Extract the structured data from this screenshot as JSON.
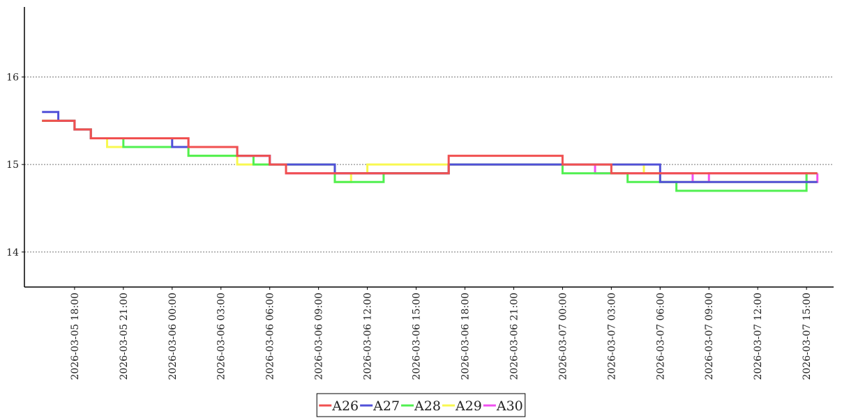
{
  "chart_data": {
    "type": "step-line",
    "x": [
      "2026-03-05 16:00",
      "2026-03-05 17:00",
      "2026-03-05 18:00",
      "2026-03-05 19:00",
      "2026-03-05 20:00",
      "2026-03-05 21:00",
      "2026-03-05 22:00",
      "2026-03-05 23:00",
      "2026-03-06 00:00",
      "2026-03-06 01:00",
      "2026-03-06 02:00",
      "2026-03-06 03:00",
      "2026-03-06 04:00",
      "2026-03-06 05:00",
      "2026-03-06 06:00",
      "2026-03-06 07:00",
      "2026-03-06 08:00",
      "2026-03-06 09:00",
      "2026-03-06 10:00",
      "2026-03-06 11:00",
      "2026-03-06 12:00",
      "2026-03-06 13:00",
      "2026-03-06 14:00",
      "2026-03-06 15:00",
      "2026-03-06 16:00",
      "2026-03-06 17:00",
      "2026-03-06 18:00",
      "2026-03-06 19:00",
      "2026-03-06 20:00",
      "2026-03-06 21:00",
      "2026-03-06 22:00",
      "2026-03-06 23:00",
      "2026-03-07 00:00",
      "2026-03-07 01:00",
      "2026-03-07 02:00",
      "2026-03-07 03:00",
      "2026-03-07 04:00",
      "2026-03-07 05:00",
      "2026-03-07 06:00",
      "2026-03-07 07:00",
      "2026-03-07 08:00",
      "2026-03-07 09:00",
      "2026-03-07 10:00",
      "2026-03-07 11:00",
      "2026-03-07 12:00",
      "2026-03-07 13:00",
      "2026-03-07 14:00",
      "2026-03-07 15:00",
      "2026-03-07 15:40"
    ],
    "series": [
      {
        "name": "A26",
        "color": "#f05050",
        "values": [
          15.5,
          15.5,
          15.4,
          15.3,
          15.3,
          15.3,
          15.3,
          15.3,
          15.3,
          15.2,
          15.2,
          15.2,
          15.1,
          15.1,
          15.0,
          14.9,
          14.9,
          14.9,
          14.9,
          14.9,
          14.9,
          14.9,
          14.9,
          14.9,
          14.9,
          15.1,
          15.1,
          15.1,
          15.1,
          15.1,
          15.1,
          15.1,
          15.0,
          15.0,
          15.0,
          14.9,
          14.9,
          14.9,
          14.9,
          14.9,
          14.9,
          14.9,
          14.9,
          14.9,
          14.9,
          14.9,
          14.9,
          14.9,
          14.9
        ]
      },
      {
        "name": "A27",
        "color": "#5050d8",
        "values": [
          15.6,
          15.5,
          15.4,
          15.3,
          15.3,
          15.3,
          15.3,
          15.3,
          15.2,
          15.2,
          15.2,
          15.2,
          15.1,
          15.1,
          15.0,
          15.0,
          15.0,
          15.0,
          14.9,
          14.9,
          14.9,
          14.9,
          14.9,
          14.9,
          14.9,
          15.0,
          15.0,
          15.0,
          15.0,
          15.0,
          15.0,
          15.0,
          15.0,
          15.0,
          15.0,
          15.0,
          15.0,
          15.0,
          14.8,
          14.8,
          14.8,
          14.8,
          14.8,
          14.8,
          14.8,
          14.8,
          14.8,
          14.8,
          14.8
        ]
      },
      {
        "name": "A28",
        "color": "#50f050",
        "values": [
          15.5,
          15.5,
          15.4,
          15.3,
          15.3,
          15.2,
          15.2,
          15.2,
          15.2,
          15.1,
          15.1,
          15.1,
          15.1,
          15.0,
          15.0,
          15.0,
          15.0,
          15.0,
          14.8,
          14.8,
          14.8,
          14.9,
          14.9,
          14.9,
          14.9,
          15.0,
          15.0,
          15.0,
          15.0,
          15.0,
          15.0,
          15.0,
          14.9,
          14.9,
          14.9,
          14.9,
          14.8,
          14.8,
          14.8,
          14.7,
          14.7,
          14.7,
          14.7,
          14.7,
          14.7,
          14.7,
          14.7,
          14.9,
          14.9
        ]
      },
      {
        "name": "A29",
        "color": "#f8f850",
        "values": [
          15.5,
          15.5,
          15.4,
          15.3,
          15.2,
          15.2,
          15.2,
          15.2,
          15.2,
          15.1,
          15.1,
          15.1,
          15.0,
          15.0,
          15.0,
          15.0,
          15.0,
          15.0,
          14.8,
          14.9,
          15.0,
          15.0,
          15.0,
          15.0,
          15.0,
          15.0,
          15.0,
          15.0,
          15.0,
          15.0,
          15.0,
          15.0,
          15.0,
          15.0,
          15.0,
          15.0,
          15.0,
          14.9,
          14.8,
          14.8,
          14.8,
          14.8,
          14.8,
          14.8,
          14.8,
          14.8,
          14.8,
          14.8,
          14.8
        ]
      },
      {
        "name": "A30",
        "color": "#f050f0",
        "values": [
          15.5,
          15.5,
          15.4,
          15.3,
          15.3,
          15.3,
          15.3,
          15.3,
          15.3,
          15.2,
          15.2,
          15.2,
          15.1,
          15.1,
          15.0,
          14.9,
          14.9,
          14.9,
          14.9,
          14.9,
          14.9,
          14.9,
          14.9,
          14.9,
          14.9,
          15.0,
          15.0,
          15.0,
          15.0,
          15.0,
          15.0,
          15.0,
          15.0,
          15.0,
          14.9,
          14.9,
          14.9,
          14.9,
          14.9,
          14.9,
          14.8,
          14.9,
          14.9,
          14.9,
          14.9,
          14.9,
          14.9,
          14.8,
          14.9
        ]
      }
    ],
    "xlim": [
      "2026-03-05 14:55",
      "2026-03-07 16:40"
    ],
    "xticks": [
      "2026-03-05 18:00",
      "2026-03-05 21:00",
      "2026-03-06 00:00",
      "2026-03-06 03:00",
      "2026-03-06 06:00",
      "2026-03-06 09:00",
      "2026-03-06 12:00",
      "2026-03-06 15:00",
      "2026-03-06 18:00",
      "2026-03-06 21:00",
      "2026-03-07 00:00",
      "2026-03-07 03:00",
      "2026-03-07 06:00",
      "2026-03-07 09:00",
      "2026-03-07 12:00",
      "2026-03-07 15:00"
    ],
    "ylim": [
      13.6,
      16.8
    ],
    "yticks": [
      14,
      15,
      16
    ],
    "grid": true,
    "legend": "bottom"
  }
}
